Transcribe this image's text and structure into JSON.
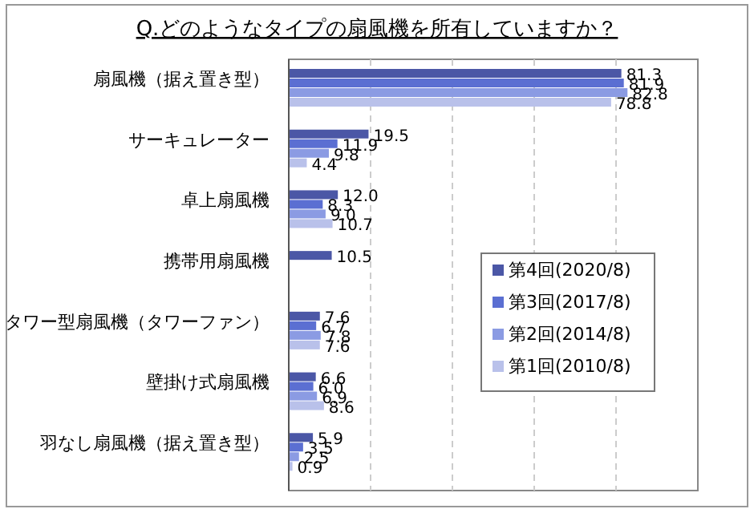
{
  "chart_data": {
    "type": "bar",
    "orientation": "horizontal",
    "title": "Q.どのようなタイプの扇風機を所有していますか？",
    "categories": [
      "扇風機（据え置き型）",
      "サーキュレーター",
      "卓上扇風機",
      "携帯用扇風機",
      "タワー型扇風機（タワーファン）",
      "壁掛け式扇風機",
      "羽なし扇風機（据え置き型）"
    ],
    "series": [
      {
        "name": "第4回(2020/8)",
        "color": "#4b57a6",
        "values": [
          81.3,
          19.5,
          12.0,
          10.5,
          7.6,
          6.6,
          5.9
        ],
        "value_labels": [
          "81.3",
          "19.5",
          "12.0",
          "10.5",
          "7.6",
          "6.6",
          "5.9"
        ]
      },
      {
        "name": "第3回(2017/8)",
        "color": "#5b6fd2",
        "values": [
          81.9,
          11.9,
          8.3,
          null,
          6.7,
          6.0,
          3.5
        ],
        "value_labels": [
          "81.9",
          "11.9",
          "8.3",
          null,
          "6.7",
          "6.0",
          "3.5"
        ]
      },
      {
        "name": "第2回(2014/8)",
        "color": "#8b9be3",
        "values": [
          82.8,
          9.8,
          9.0,
          null,
          7.8,
          6.9,
          2.5
        ],
        "value_labels": [
          "82.8",
          "9.8",
          "9.0",
          null,
          "7.8",
          "6.9",
          "2.5"
        ]
      },
      {
        "name": "第1回(2010/8)",
        "color": "#b9c1ea",
        "values": [
          78.8,
          4.4,
          10.7,
          null,
          7.6,
          8.6,
          0.9
        ],
        "value_labels": [
          "78.8",
          "4.4",
          "10.7",
          null,
          "7.6",
          "8.6",
          "0.9"
        ]
      }
    ],
    "xlim": [
      0,
      100
    ],
    "xticks": [
      {
        "value": 20,
        "label": null
      },
      {
        "value": 40,
        "label": null
      },
      {
        "value": 60,
        "label": null
      },
      {
        "value": 80,
        "label": null
      }
    ],
    "grid": "x",
    "tick_labels": "y",
    "legend": "right"
  }
}
